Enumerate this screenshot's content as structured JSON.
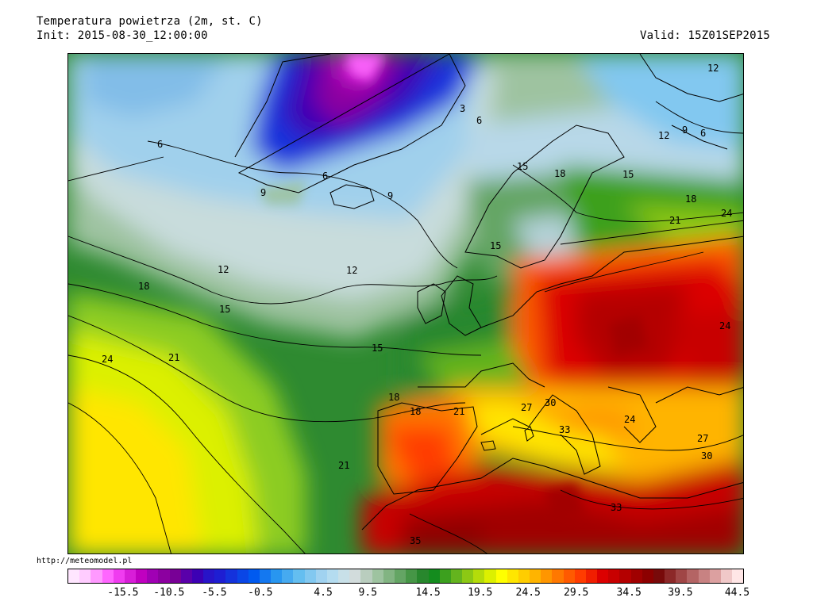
{
  "header": {
    "title": "Temperatura powietrza (2m, st. C)",
    "init": "Init: 2015-08-30_12:00:00",
    "valid": "Valid: 15Z01SEP2015"
  },
  "footer": {
    "source": "http://meteomodel.pl"
  },
  "legend": {
    "colors": [
      "#ffe6ff",
      "#ffccff",
      "#ff99ff",
      "#ff66ff",
      "#f03cf0",
      "#d81ed8",
      "#c000c0",
      "#a000b4",
      "#8c00a0",
      "#780096",
      "#5a00aa",
      "#3c00b4",
      "#2814c8",
      "#1e1ed2",
      "#1432dc",
      "#0a46e6",
      "#005af0",
      "#1478f0",
      "#2896f0",
      "#46aaf0",
      "#64bef0",
      "#82c8f0",
      "#a0d2f0",
      "#b4dcf0",
      "#c8e0e8",
      "#d2dcdc",
      "#b9cdbe",
      "#9ec3a0",
      "#82b482",
      "#64a564",
      "#469646",
      "#28872d",
      "#148c1e",
      "#3ca01e",
      "#64b41e",
      "#8cc814",
      "#b4dc0a",
      "#dcf000",
      "#ffff00",
      "#ffe600",
      "#ffcd00",
      "#ffb400",
      "#ff9600",
      "#ff7800",
      "#ff5a00",
      "#ff3c00",
      "#f01e00",
      "#dc0000",
      "#c80000",
      "#b40000",
      "#a00000",
      "#8c0000",
      "#780a0a",
      "#8c2828",
      "#a04646",
      "#b46464",
      "#c88282",
      "#dca0a0",
      "#f0c8c8",
      "#ffe6e6"
    ],
    "labels": [
      "-15.5",
      "-10.5",
      "-5.5",
      "-0.5",
      "4.5",
      "9.5",
      "14.5",
      "19.5",
      "24.5",
      "29.5",
      "34.5",
      "39.5",
      "44.5"
    ],
    "label_fractions": [
      0.082,
      0.15,
      0.217,
      0.285,
      0.378,
      0.444,
      0.533,
      0.61,
      0.681,
      0.752,
      0.83,
      0.906,
      0.99
    ]
  },
  "map": {
    "contour_labels": [
      "12",
      "3",
      "6",
      "6",
      "9",
      "6",
      "9",
      "6",
      "9",
      "15",
      "18",
      "15",
      "12",
      "15",
      "18",
      "21",
      "24",
      "12",
      "12",
      "18",
      "15",
      "15",
      "18",
      "21",
      "24",
      "18",
      "21",
      "24",
      "27",
      "30",
      "33",
      "27",
      "24",
      "30",
      "33",
      "35",
      "21"
    ]
  }
}
